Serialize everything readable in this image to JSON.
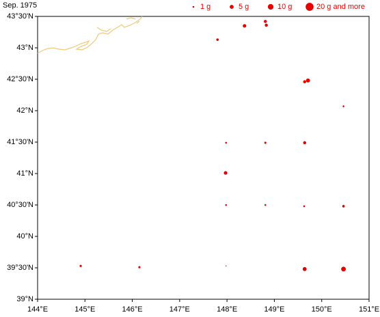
{
  "chart_data": {
    "type": "bubble",
    "title": "Sep. 1975",
    "x": [
      147.8,
      148.37,
      148.81,
      148.83,
      149.64,
      149.71,
      150.46,
      147.98,
      148.81,
      149.64,
      147.97,
      147.98,
      148.81,
      149.63,
      150.46,
      144.91,
      146.15,
      147.98,
      149.64,
      150.46
    ],
    "values": [
      43.13,
      43.35,
      43.42,
      43.36,
      42.46,
      42.48,
      42.07,
      41.49,
      41.49,
      41.49,
      41.01,
      40.5,
      40.5,
      40.48,
      40.48,
      39.53,
      39.51,
      39.53,
      39.48,
      39.48
    ],
    "sizes": [
      2,
      4,
      3,
      3,
      3,
      5,
      1,
      1,
      1.5,
      3,
      4,
      1,
      1,
      1,
      2,
      1.5,
      1.5,
      0.3,
      5,
      7
    ],
    "color": "#e60000",
    "size_legend": [
      {
        "value": 1,
        "label": "1 g"
      },
      {
        "value": 5,
        "label": "5 g"
      },
      {
        "value": 10,
        "label": "10 g"
      },
      {
        "value": 20,
        "label": "20 g and more"
      }
    ],
    "xlim": [
      144,
      151
    ],
    "ylim": [
      39,
      43.5
    ],
    "xticks": [
      {
        "value": 144,
        "label": "144°E"
      },
      {
        "value": 145,
        "label": "145°E"
      },
      {
        "value": 146,
        "label": "146°E"
      },
      {
        "value": 147,
        "label": "147°E"
      },
      {
        "value": 148,
        "label": "148°E"
      },
      {
        "value": 149,
        "label": "149°E"
      },
      {
        "value": 150,
        "label": "150°E"
      },
      {
        "value": 151,
        "label": "151°E"
      }
    ],
    "yticks": [
      {
        "value": 39,
        "label": "39°N"
      },
      {
        "value": 39.5,
        "label": "39°30'N"
      },
      {
        "value": 40,
        "label": "40°N"
      },
      {
        "value": 40.5,
        "label": "40°30'N"
      },
      {
        "value": 41,
        "label": "41°N"
      },
      {
        "value": 41.5,
        "label": "41°30'N"
      },
      {
        "value": 42,
        "label": "42°N"
      },
      {
        "value": 42.5,
        "label": "42°30'N"
      },
      {
        "value": 43,
        "label": "43°N"
      },
      {
        "value": 43.5,
        "label": "43°30'N"
      }
    ]
  }
}
